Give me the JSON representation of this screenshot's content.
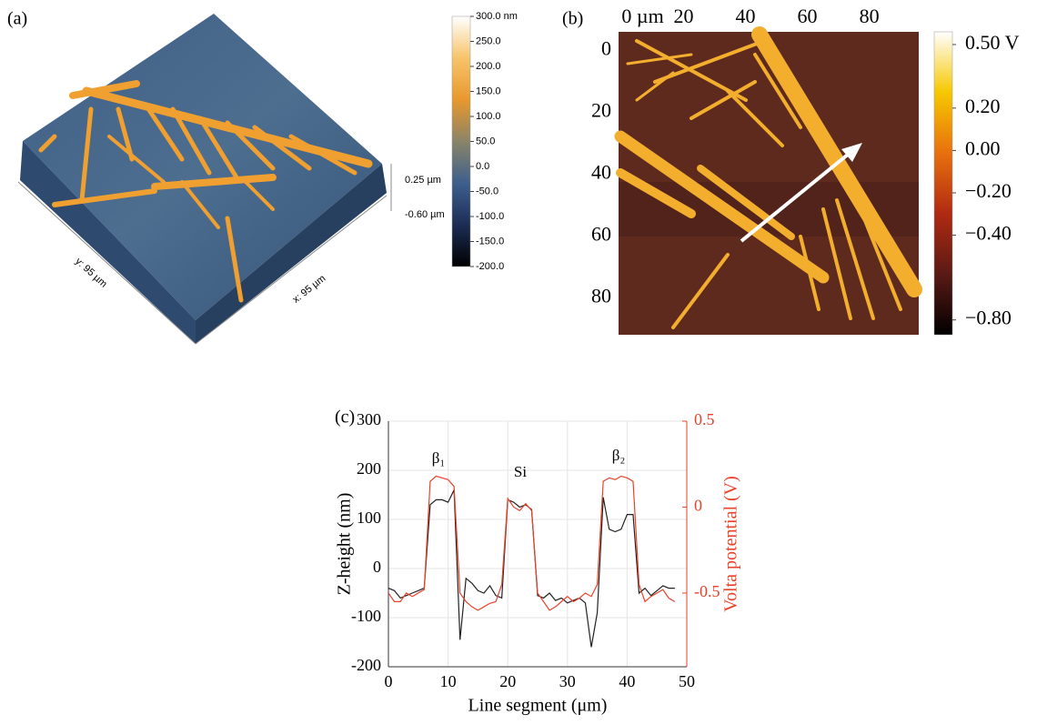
{
  "panel_labels": [
    "(a)",
    "(b)",
    "(c)"
  ],
  "chart_data": [
    {
      "type": "surface3d",
      "colorbar": {
        "lim": [
          -200,
          300
        ],
        "colors": [
          "#ffffff",
          "#f7c46a",
          "#e8982e",
          "#8a8468",
          "#3d5f8c",
          "#1c2d55",
          "#000000"
        ],
        "ticks": [
          {
            "value": 300,
            "label": "300.0 nm"
          },
          {
            "value": 250,
            "label": "250.0"
          },
          {
            "value": 200,
            "label": "200.0"
          },
          {
            "value": 150,
            "label": "150.0"
          },
          {
            "value": 100,
            "label": "100.0"
          },
          {
            "value": 50,
            "label": "50.0"
          },
          {
            "value": 0,
            "label": "0.0"
          },
          {
            "value": -50,
            "label": "-50.0"
          },
          {
            "value": -100,
            "label": "-100.0"
          },
          {
            "value": -150,
            "label": "-150.0"
          },
          {
            "value": -200,
            "label": "-200.0"
          }
        ]
      },
      "scale_labels": [
        "0.25 µm",
        "-0.60 µm"
      ],
      "axis_labels": {
        "y": "y: 95 µm",
        "x": "x: 95 µm"
      }
    },
    {
      "type": "heatmap",
      "xlim": [
        -1,
        96
      ],
      "ylim": [
        -6,
        92
      ],
      "xticks": [
        {
          "value": 0,
          "label": "0 µm"
        },
        20,
        40,
        60,
        80
      ],
      "yticks": [
        0,
        20,
        40,
        60,
        80
      ],
      "colorbar": {
        "lim": [
          -0.87,
          0.56
        ],
        "colors": [
          "#ffffff",
          "#f6c800",
          "#e8700e",
          "#b02a12",
          "#5a1a14",
          "#000000"
        ],
        "ticks": [
          {
            "value": 0.5,
            "label": "0.50 V"
          },
          {
            "value": 0.2,
            "label": "0.20"
          },
          {
            "value": 0,
            "label": "0.00"
          },
          {
            "value": -0.2,
            "label": "−0.20"
          },
          {
            "value": -0.4,
            "label": "−0.40"
          },
          {
            "value": -0.8,
            "label": "−0.80"
          }
        ]
      }
    },
    {
      "type": "line",
      "xlabel": "Line segment (μm)",
      "ylabel": "Z-height (nm)",
      "y2label": "Volta potential (V)",
      "annotations": [
        "β₁",
        "Si",
        "β₂"
      ],
      "xlim": [
        0,
        50
      ],
      "xticks": [
        0,
        10,
        20,
        30,
        40,
        50
      ],
      "ylim": [
        -200,
        300
      ],
      "yticks": [
        -200,
        -100,
        0,
        100,
        200,
        300
      ],
      "y2lim": [
        -0.929,
        0.5
      ],
      "y2ticks": [
        -0.5,
        0,
        0.5
      ],
      "y2color": "#e8422a",
      "grid": true,
      "x": [
        0,
        1,
        2,
        3,
        4,
        5,
        6,
        7,
        8,
        9,
        10,
        11,
        12,
        13,
        14,
        15,
        16,
        17,
        18,
        19,
        20,
        21,
        22,
        23,
        24,
        25,
        26,
        27,
        28,
        29,
        30,
        31,
        32,
        33,
        34,
        35,
        36,
        37,
        38,
        39,
        40,
        41,
        42,
        43,
        44,
        45,
        46,
        47,
        48
      ],
      "series": [
        {
          "color": "#222222",
          "values": [
            -40,
            -45,
            -60,
            -55,
            -50,
            -45,
            -40,
            130,
            140,
            140,
            135,
            160,
            -145,
            -20,
            -30,
            -45,
            -50,
            -35,
            -55,
            -60,
            140,
            135,
            125,
            130,
            120,
            -55,
            -60,
            -50,
            -65,
            -60,
            -70,
            -65,
            -60,
            -70,
            -160,
            -90,
            145,
            80,
            75,
            80,
            110,
            110,
            -50,
            -40,
            -55,
            -45,
            -35,
            -40,
            -40
          ]
        },
        {
          "color": "#e8422a",
          "axis": "y2",
          "values": [
            -0.5,
            -0.55,
            -0.55,
            -0.5,
            -0.52,
            -0.5,
            -0.48,
            0.15,
            0.18,
            0.17,
            0.16,
            0.12,
            -0.5,
            -0.55,
            -0.58,
            -0.6,
            -0.58,
            -0.56,
            -0.55,
            -0.45,
            0.05,
            0.0,
            -0.02,
            0.02,
            -0.02,
            -0.5,
            -0.55,
            -0.6,
            -0.58,
            -0.55,
            -0.52,
            -0.55,
            -0.53,
            -0.5,
            -0.52,
            -0.45,
            0.15,
            0.17,
            0.16,
            0.18,
            0.17,
            0.15,
            -0.45,
            -0.55,
            -0.52,
            -0.5,
            -0.48,
            -0.53,
            -0.55
          ]
        }
      ]
    }
  ]
}
